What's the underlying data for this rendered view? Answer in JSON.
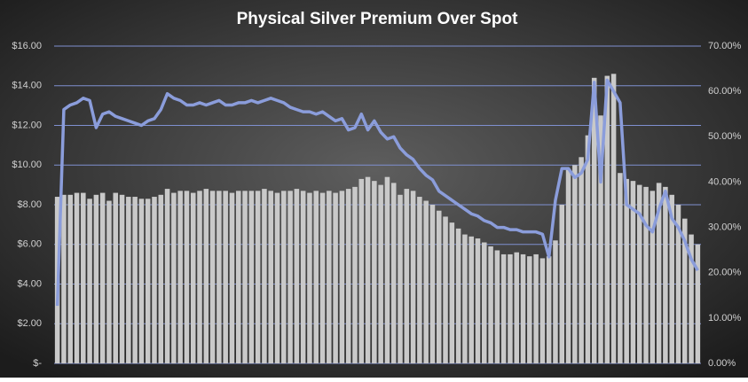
{
  "chart_data": {
    "type": "bar-line",
    "title": "Physical  Silver  Premium  Over  Spot",
    "series": [
      {
        "type": "bar",
        "color": "#c9c9c9",
        "values": [
          8.4,
          8.5,
          8.5,
          8.6,
          8.6,
          8.3,
          8.5,
          8.6,
          8.2,
          8.6,
          8.5,
          8.4,
          8.4,
          8.3,
          8.3,
          8.4,
          8.5,
          8.8,
          8.6,
          8.7,
          8.7,
          8.6,
          8.7,
          8.8,
          8.7,
          8.7,
          8.7,
          8.6,
          8.7,
          8.7,
          8.7,
          8.7,
          8.8,
          8.7,
          8.6,
          8.7,
          8.7,
          8.8,
          8.7,
          8.6,
          8.7,
          8.6,
          8.7,
          8.6,
          8.7,
          8.8,
          8.9,
          9.3,
          9.4,
          9.2,
          9.0,
          9.4,
          9.1,
          8.5,
          8.8,
          8.7,
          8.4,
          8.2,
          8.0,
          7.7,
          7.4,
          7.1,
          6.8,
          6.5,
          6.4,
          6.3,
          6.1,
          5.9,
          5.7,
          5.5,
          5.5,
          5.6,
          5.5,
          5.4,
          5.5,
          5.3,
          5.4,
          6.2,
          8.0,
          9.8,
          10.0,
          10.4,
          11.5,
          14.4,
          12.5,
          14.5,
          14.6,
          9.6,
          9.3,
          9.2,
          9.0,
          8.9,
          8.7,
          9.1,
          8.9,
          8.5,
          8.0,
          7.3,
          6.5,
          6.0
        ]
      },
      {
        "type": "line",
        "axis": "y2",
        "color": "#8b9ddb",
        "values": [
          12.7,
          56,
          57,
          57.5,
          58.5,
          58,
          52,
          55,
          55.5,
          54.5,
          54,
          53.5,
          53,
          52.5,
          53.5,
          54,
          56,
          59.5,
          58.5,
          58,
          57,
          57,
          57.5,
          57,
          57.5,
          58,
          57,
          57,
          57.5,
          57.5,
          58,
          57.5,
          58,
          58.5,
          58,
          57.5,
          56.5,
          56,
          55.5,
          55.5,
          55,
          55.5,
          54.5,
          53.5,
          54,
          51.5,
          52,
          55,
          51.5,
          53.5,
          51,
          49.5,
          50,
          47.5,
          46,
          45,
          43,
          41.5,
          40.5,
          38,
          37,
          36,
          35,
          34,
          33,
          32.5,
          31.5,
          31,
          30,
          30,
          29.5,
          29.5,
          29,
          29,
          29,
          28.5,
          23.5,
          36,
          43,
          43,
          41,
          42,
          45,
          62,
          40,
          62.5,
          60,
          57.5,
          35,
          34,
          33,
          30.5,
          29,
          34,
          38,
          32,
          30,
          27,
          23,
          20.5
        ]
      }
    ],
    "ylim": [
      0,
      16
    ],
    "yticks": [
      {
        "value": 0,
        "label": "$-"
      },
      {
        "value": 2,
        "label": "$2.00"
      },
      {
        "value": 4,
        "label": "$4.00"
      },
      {
        "value": 6,
        "label": "$6.00"
      },
      {
        "value": 8,
        "label": "$8.00"
      },
      {
        "value": 10,
        "label": "$10.00"
      },
      {
        "value": 12,
        "label": "$12.00"
      },
      {
        "value": 14,
        "label": "$14.00"
      },
      {
        "value": 16,
        "label": "$16.00"
      }
    ],
    "y2lim": [
      0,
      70
    ],
    "y2ticks": [
      {
        "value": 0,
        "label": "0.00%"
      },
      {
        "value": 10,
        "label": "10.00%"
      },
      {
        "value": 20,
        "label": "20.00%"
      },
      {
        "value": 30,
        "label": "30.00%"
      },
      {
        "value": 40,
        "label": "40.00%"
      },
      {
        "value": 50,
        "label": "50.00%"
      },
      {
        "value": 60,
        "label": "60.00%"
      },
      {
        "value": 70,
        "label": "70.00%"
      }
    ],
    "grid": true,
    "grid_color": "#7f90d0"
  }
}
